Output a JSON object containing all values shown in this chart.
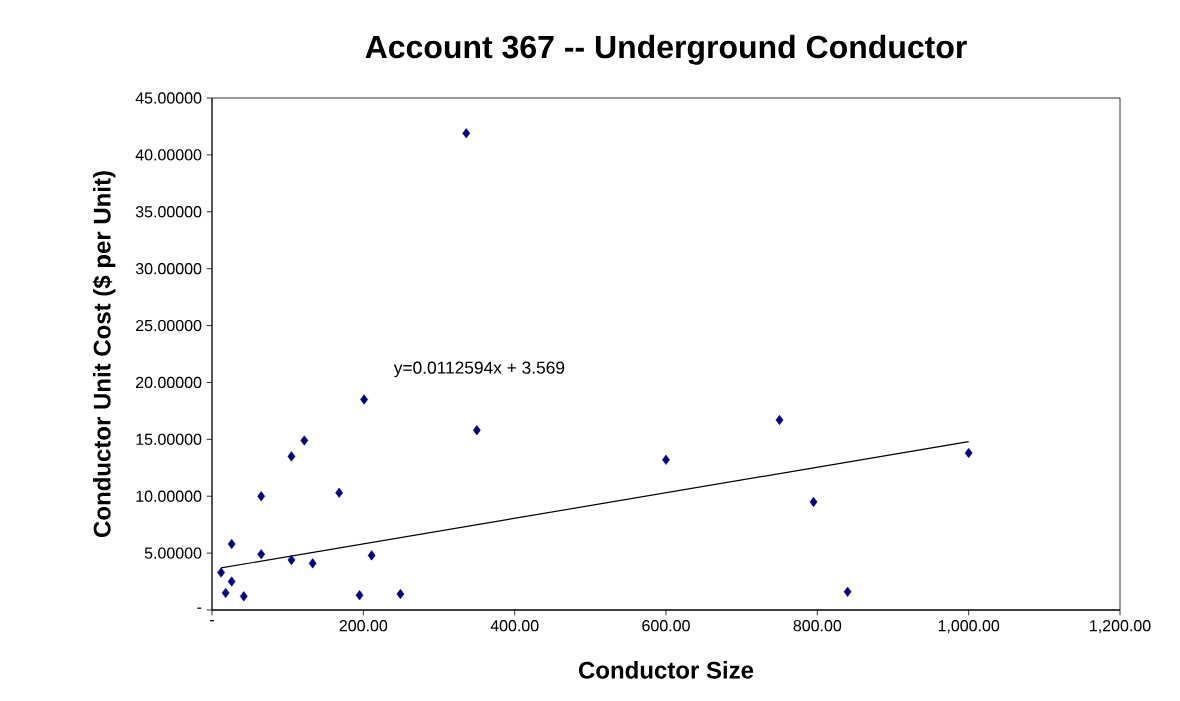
{
  "chart_data": {
    "type": "scatter",
    "title": "Account 367 -- Underground Conductor",
    "xlabel": "Conductor Size",
    "ylabel": "Conductor Unit Cost ($ per Unit)",
    "xlim": [
      0,
      1200
    ],
    "ylim": [
      0,
      45
    ],
    "xticks": [
      {
        "value": 0,
        "label": "-"
      },
      {
        "value": 200,
        "label": "200.00"
      },
      {
        "value": 400,
        "label": "400.00"
      },
      {
        "value": 600,
        "label": "600.00"
      },
      {
        "value": 800,
        "label": "800.00"
      },
      {
        "value": 1000,
        "label": "1,000.00"
      },
      {
        "value": 1200,
        "label": "1,200.00"
      }
    ],
    "yticks": [
      {
        "value": 0,
        "label": "-"
      },
      {
        "value": 5,
        "label": "5.00000"
      },
      {
        "value": 10,
        "label": "10.00000"
      },
      {
        "value": 15,
        "label": "15.00000"
      },
      {
        "value": 20,
        "label": "20.00000"
      },
      {
        "value": 25,
        "label": "25.00000"
      },
      {
        "value": 30,
        "label": "30.00000"
      },
      {
        "value": 35,
        "label": "35.00000"
      },
      {
        "value": 40,
        "label": "40.00000"
      },
      {
        "value": 45,
        "label": "45.00000"
      }
    ],
    "series": [
      {
        "color": "#000080",
        "marker": "diamond",
        "x": [
          12,
          18,
          26,
          26,
          42,
          65,
          65,
          105,
          105,
          122,
          133,
          168,
          195,
          201,
          211,
          249,
          336,
          350,
          600,
          750,
          795,
          840,
          1000
        ],
        "values": [
          3.3,
          1.5,
          2.5,
          5.8,
          1.2,
          10.0,
          4.9,
          4.4,
          13.5,
          14.9,
          4.1,
          10.3,
          1.3,
          18.5,
          4.8,
          1.4,
          41.9,
          15.8,
          13.2,
          16.7,
          9.5,
          1.6,
          13.8
        ]
      },
      {
        "type": "line",
        "color": "#000000",
        "marker": "none",
        "line_style": "solid",
        "x": [
          12,
          1000
        ],
        "values": [
          3.7,
          14.8
        ]
      }
    ],
    "annotations": [
      "y=0.0112594x + 3.569"
    ]
  }
}
